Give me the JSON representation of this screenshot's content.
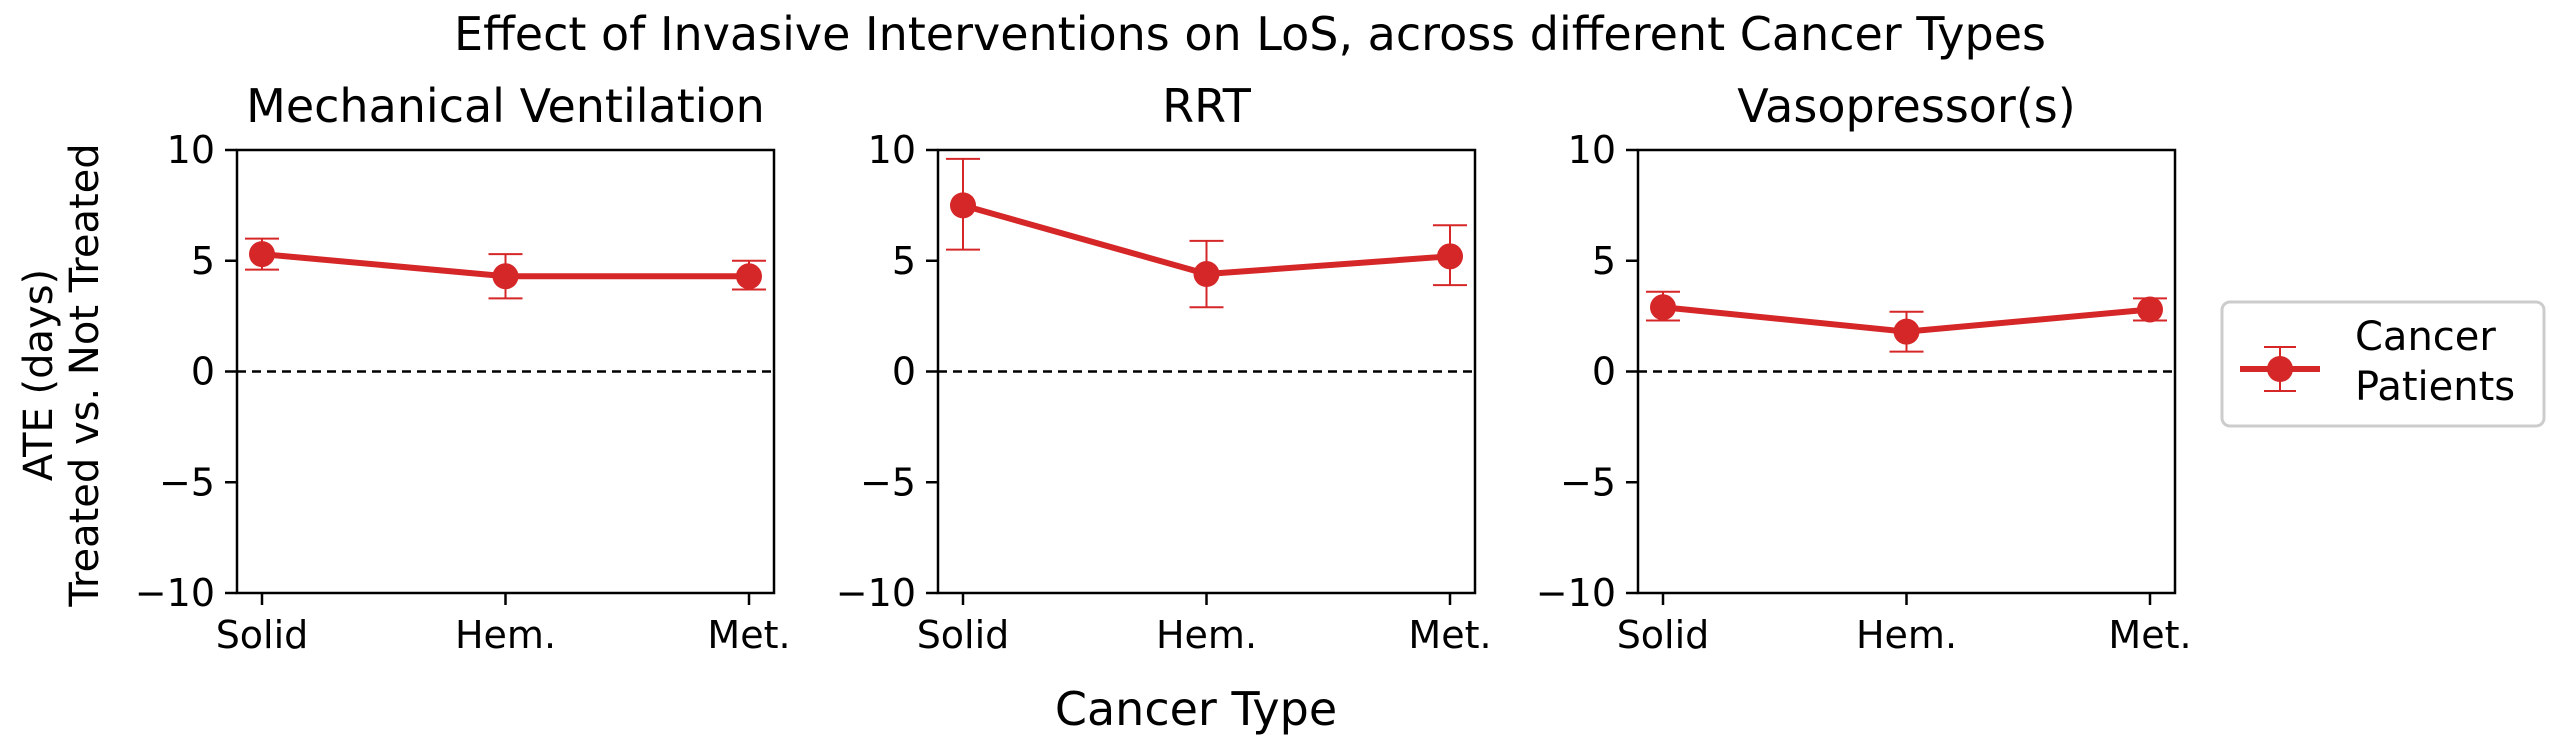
{
  "figure": {
    "title": "Effect of Invasive Interventions on LoS, across different Cancer Types",
    "ylabel_line1": "ATE (days)",
    "ylabel_line2": "Treated vs. Not Treated",
    "xlabel": "Cancer Type",
    "legend": {
      "line1": "Cancer",
      "line2": "Patients"
    },
    "colors": {
      "series": "#d62728",
      "zero_line": "#000000"
    }
  },
  "chart_data": [
    {
      "type": "line",
      "title": "Mechanical Ventilation",
      "categories": [
        "Solid",
        "Hem.",
        "Met."
      ],
      "series": [
        {
          "name": "Cancer Patients",
          "values": [
            5.3,
            4.3,
            4.3
          ],
          "err_low": [
            4.6,
            3.3,
            3.7
          ],
          "err_high": [
            6.0,
            5.3,
            5.0
          ]
        }
      ],
      "ylim": [
        -10,
        10
      ],
      "yticks": [
        "10",
        "5",
        "0",
        "−5",
        "−10"
      ],
      "ytick_values": [
        10,
        5,
        0,
        -5,
        -10
      ],
      "reference_line": 0
    },
    {
      "type": "line",
      "title": "RRT",
      "categories": [
        "Solid",
        "Hem.",
        "Met."
      ],
      "series": [
        {
          "name": "Cancer Patients",
          "values": [
            7.5,
            4.4,
            5.2
          ],
          "err_low": [
            5.5,
            2.9,
            3.9
          ],
          "err_high": [
            9.6,
            5.9,
            6.6
          ]
        }
      ],
      "ylim": [
        -10,
        10
      ],
      "yticks": [
        "10",
        "5",
        "0",
        "−5",
        "−10"
      ],
      "ytick_values": [
        10,
        5,
        0,
        -5,
        -10
      ],
      "reference_line": 0
    },
    {
      "type": "line",
      "title": "Vasopressor(s)",
      "categories": [
        "Solid",
        "Hem.",
        "Met."
      ],
      "series": [
        {
          "name": "Cancer Patients",
          "values": [
            2.9,
            1.8,
            2.8
          ],
          "err_low": [
            2.3,
            0.9,
            2.3
          ],
          "err_high": [
            3.6,
            2.7,
            3.3
          ]
        }
      ],
      "ylim": [
        -10,
        10
      ],
      "yticks": [
        "10",
        "5",
        "0",
        "−5",
        "−10"
      ],
      "ytick_values": [
        10,
        5,
        0,
        -5,
        -10
      ],
      "reference_line": 0
    }
  ]
}
